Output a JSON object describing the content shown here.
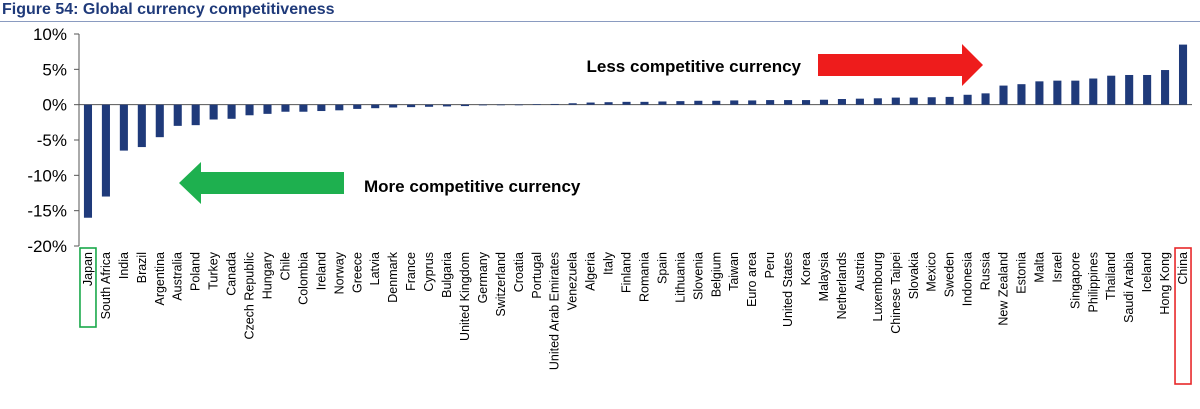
{
  "figure_title": "Figure 54: Global currency competitiveness",
  "chart_data": {
    "type": "bar",
    "title": "",
    "xlabel": "",
    "ylabel": "",
    "ylim": [
      -20,
      10
    ],
    "yticks": [
      10,
      5,
      0,
      -5,
      -10,
      -15,
      -20
    ],
    "ytick_labels": [
      "10%",
      "5%",
      "0%",
      "-5%",
      "-10%",
      "-15%",
      "-20%"
    ],
    "bar_color": "#1f3a7a",
    "grid": false,
    "categories": [
      "Japan",
      "South Africa",
      "India",
      "Brazil",
      "Argentina",
      "Australia",
      "Poland",
      "Turkey",
      "Canada",
      "Czech Republic",
      "Hungary",
      "Chile",
      "Colombia",
      "Ireland",
      "Norway",
      "Greece",
      "Latvia",
      "Denmark",
      "France",
      "Cyprus",
      "Bulgaria",
      "United Kingdom",
      "Germany",
      "Switzerland",
      "Croatia",
      "Portugal",
      "United Arab Emirates",
      "Venezuela",
      "Algeria",
      "Italy",
      "Finland",
      "Romania",
      "Spain",
      "Lithuania",
      "Slovenia",
      "Belgium",
      "Taiwan",
      "Euro area",
      "Peru",
      "United States",
      "Korea",
      "Malaysia",
      "Netherlands",
      "Austria",
      "Luxembourg",
      "Chinese Taipei",
      "Slovakia",
      "Mexico",
      "Sweden",
      "Indonesia",
      "Russia",
      "New Zealand",
      "Estonia",
      "Malta",
      "Israel",
      "Singapore",
      "Philippines",
      "Thailand",
      "Saudi Arabia",
      "Iceland",
      "Hong Kong",
      "China"
    ],
    "values": [
      -16.0,
      -13.0,
      -6.5,
      -6.0,
      -4.6,
      -3.0,
      -2.9,
      -2.1,
      -2.0,
      -1.5,
      -1.3,
      -1.0,
      -1.0,
      -0.9,
      -0.8,
      -0.6,
      -0.5,
      -0.4,
      -0.35,
      -0.3,
      -0.25,
      -0.2,
      -0.1,
      -0.05,
      0.0,
      0.05,
      0.1,
      0.2,
      0.3,
      0.35,
      0.4,
      0.4,
      0.45,
      0.5,
      0.55,
      0.55,
      0.6,
      0.6,
      0.65,
      0.65,
      0.65,
      0.7,
      0.8,
      0.85,
      0.9,
      1.0,
      1.0,
      1.05,
      1.1,
      1.4,
      1.6,
      2.7,
      2.9,
      3.3,
      3.4,
      3.4,
      3.7,
      4.1,
      4.2,
      4.2,
      4.9,
      8.5
    ],
    "highlighted": [
      {
        "category": "Japan",
        "color": "#19a84a"
      },
      {
        "category": "China",
        "color": "#e8282a"
      }
    ],
    "annotations": [
      {
        "text": "Less competitive currency",
        "arrow_direction": "right",
        "arrow_color": "#ee1c1c"
      },
      {
        "text": "More competitive currency",
        "arrow_direction": "left",
        "arrow_color": "#1eb04f"
      }
    ]
  }
}
